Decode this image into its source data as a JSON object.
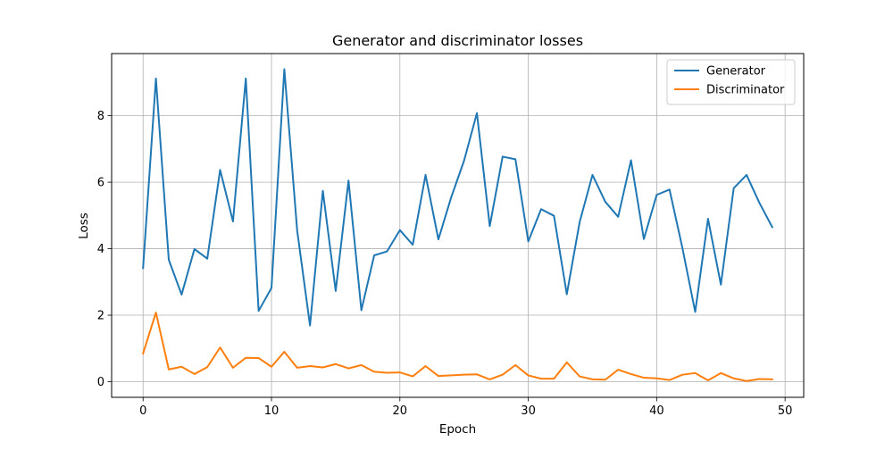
{
  "chart_data": {
    "type": "line",
    "title": "Generator and discriminator losses",
    "xlabel": "Epoch",
    "ylabel": "Loss",
    "xlim": [
      -2.45,
      51.45
    ],
    "ylim": [
      -0.47,
      9.87
    ],
    "xticks": [
      0,
      10,
      20,
      30,
      40,
      50
    ],
    "yticks": [
      0,
      2,
      4,
      6,
      8
    ],
    "grid": true,
    "legend_position": "top-right",
    "x": [
      0,
      1,
      2,
      3,
      4,
      5,
      6,
      7,
      8,
      9,
      10,
      11,
      12,
      13,
      14,
      15,
      16,
      17,
      18,
      19,
      20,
      21,
      22,
      23,
      24,
      25,
      26,
      27,
      28,
      29,
      30,
      31,
      32,
      33,
      34,
      35,
      36,
      37,
      38,
      39,
      40,
      41,
      42,
      43,
      44,
      45,
      46,
      47,
      48,
      49
    ],
    "series": [
      {
        "name": "Generator",
        "color": "#1f77b4",
        "values": [
          3.42,
          9.12,
          3.67,
          2.62,
          3.99,
          3.7,
          6.37,
          4.82,
          9.12,
          2.13,
          2.82,
          9.4,
          4.55,
          1.69,
          5.74,
          2.73,
          6.05,
          2.15,
          3.8,
          3.92,
          4.56,
          4.12,
          6.22,
          4.28,
          5.55,
          6.65,
          8.08,
          4.68,
          6.77,
          6.69,
          4.22,
          5.19,
          4.99,
          2.63,
          4.8,
          6.22,
          5.41,
          4.96,
          6.66,
          4.29,
          5.62,
          5.78,
          4.03,
          2.1,
          4.9,
          2.92,
          5.82,
          6.22,
          5.38,
          4.65
        ]
      },
      {
        "name": "Discriminator",
        "color": "#ff7f0e",
        "values": [
          0.85,
          2.08,
          0.37,
          0.45,
          0.23,
          0.44,
          1.03,
          0.42,
          0.72,
          0.71,
          0.45,
          0.9,
          0.42,
          0.47,
          0.43,
          0.53,
          0.4,
          0.5,
          0.3,
          0.27,
          0.28,
          0.16,
          0.47,
          0.17,
          0.19,
          0.21,
          0.22,
          0.07,
          0.21,
          0.5,
          0.19,
          0.09,
          0.09,
          0.58,
          0.16,
          0.07,
          0.06,
          0.36,
          0.23,
          0.12,
          0.1,
          0.05,
          0.21,
          0.26,
          0.04,
          0.26,
          0.1,
          0.02,
          0.08,
          0.07
        ]
      }
    ]
  }
}
